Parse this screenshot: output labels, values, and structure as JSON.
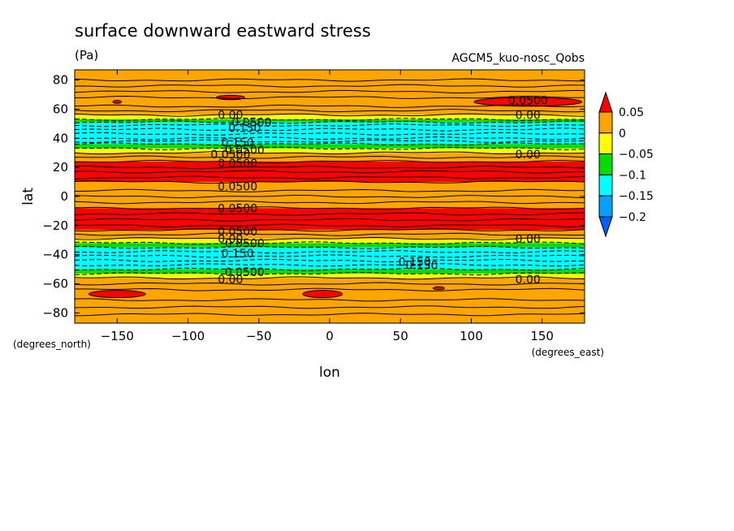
{
  "chart_data": {
    "type": "heatmap",
    "title": "surface downward eastward stress",
    "subtitle": "(Pa)",
    "run_label": "AGCM5_kuo-nosc_Qobs",
    "xlabel": "lon",
    "ylabel": "lat",
    "x_unit": "(degrees_east)",
    "y_unit": "(degrees_north)",
    "xlim": [
      -180,
      180
    ],
    "ylim": [
      -87,
      87
    ],
    "x_ticks": [
      -150,
      -100,
      -50,
      0,
      50,
      100,
      150
    ],
    "y_ticks": [
      80,
      60,
      40,
      20,
      0,
      -20,
      -40,
      -60,
      -80
    ],
    "x_tick_labels": [
      "−150",
      "−100",
      "−50",
      "0",
      "50",
      "100",
      "150"
    ],
    "y_tick_labels": [
      "80",
      "60",
      "40",
      "20",
      "0",
      "−20",
      "−40",
      "−60",
      "−80"
    ],
    "colorbar": {
      "levels": [
        0.05,
        0,
        -0.05,
        -0.1,
        -0.15,
        -0.2
      ],
      "labels": [
        "0.05",
        "0",
        "−0.05",
        "−0.1",
        "−0.15",
        "−0.2"
      ],
      "colors": [
        "#ff0000",
        "#ffa500",
        "#ffff00",
        "#00dd00",
        "#00ffff",
        "#00a0ff",
        "#0060ff"
      ]
    },
    "zonal_bands": [
      {
        "lat_min": 68,
        "lat_max": 87,
        "value": 0.02
      },
      {
        "lat_min": 56,
        "lat_max": 68,
        "value": 0.01
      },
      {
        "lat_min": 53,
        "lat_max": 56,
        "value": -0.03
      },
      {
        "lat_min": 51,
        "lat_max": 53,
        "value": -0.07
      },
      {
        "lat_min": 36,
        "lat_max": 51,
        "value": -0.12
      },
      {
        "lat_min": 33,
        "lat_max": 36,
        "value": -0.07
      },
      {
        "lat_min": 30,
        "lat_max": 33,
        "value": -0.03
      },
      {
        "lat_min": 24,
        "lat_max": 30,
        "value": 0.02
      },
      {
        "lat_min": 10,
        "lat_max": 24,
        "value": 0.06
      },
      {
        "lat_min": -8,
        "lat_max": 10,
        "value": 0.02
      },
      {
        "lat_min": -23,
        "lat_max": -8,
        "value": 0.06
      },
      {
        "lat_min": -29,
        "lat_max": -23,
        "value": 0.02
      },
      {
        "lat_min": -32,
        "lat_max": -29,
        "value": -0.03
      },
      {
        "lat_min": -35,
        "lat_max": -32,
        "value": -0.07
      },
      {
        "lat_min": -50,
        "lat_max": -35,
        "value": -0.14
      },
      {
        "lat_min": -53,
        "lat_max": -50,
        "value": -0.07
      },
      {
        "lat_min": -56,
        "lat_max": -53,
        "value": -0.03
      },
      {
        "lat_min": -87,
        "lat_max": -56,
        "value": 0.02
      }
    ],
    "local_maxima": [
      {
        "lon": -70,
        "lat": 68,
        "dlon": 10,
        "dlat": 1.5,
        "value": 0.06
      },
      {
        "lon": -150,
        "lat": 65,
        "dlon": 3,
        "dlat": 1,
        "value": 0.06
      },
      {
        "lon": 140,
        "lat": 65,
        "dlon": 38,
        "dlat": 3,
        "value": 0.06
      },
      {
        "lon": -150,
        "lat": -67,
        "dlon": 20,
        "dlat": 2.5,
        "value": 0.06
      },
      {
        "lon": -5,
        "lat": -67,
        "dlon": 14,
        "dlat": 2.5,
        "value": 0.06
      },
      {
        "lon": 77,
        "lat": -63,
        "dlon": 4,
        "dlat": 1,
        "value": 0.06
      }
    ],
    "contour_labels": [
      {
        "text": "0.00",
        "lon": -70,
        "lat": 56
      },
      {
        "text": "0.0500",
        "lon": -55,
        "lat": 51
      },
      {
        "text": "0.150",
        "lon": -60,
        "lat": 47
      },
      {
        "text": "0.150",
        "lon": -65,
        "lat": 37
      },
      {
        "text": "0.0500",
        "lon": -60,
        "lat": 32
      },
      {
        "text": "0.0500",
        "lon": -70,
        "lat": 29
      },
      {
        "text": "0.0500",
        "lon": -65,
        "lat": 23
      },
      {
        "text": "0.0500",
        "lon": -65,
        "lat": 7
      },
      {
        "text": "0.0500",
        "lon": -65,
        "lat": -8
      },
      {
        "text": "0.0500",
        "lon": -65,
        "lat": -24
      },
      {
        "text": "0.00",
        "lon": -70,
        "lat": -29
      },
      {
        "text": "0.0500",
        "lon": -60,
        "lat": -32
      },
      {
        "text": "0.150",
        "lon": -65,
        "lat": -39
      },
      {
        "text": "0.150",
        "lon": 60,
        "lat": -45
      },
      {
        "text": "0.150",
        "lon": 65,
        "lat": -47
      },
      {
        "text": "0.0500",
        "lon": -60,
        "lat": -52
      },
      {
        "text": "0.00",
        "lon": -70,
        "lat": -57
      },
      {
        "text": "0.0500",
        "lon": 140,
        "lat": 66
      },
      {
        "text": "0.00",
        "lon": 140,
        "lat": 56
      },
      {
        "text": "0.00",
        "lon": 140,
        "lat": 29
      },
      {
        "text": "0.00",
        "lon": 140,
        "lat": -29
      },
      {
        "text": "0.00",
        "lon": 140,
        "lat": -57
      }
    ]
  }
}
